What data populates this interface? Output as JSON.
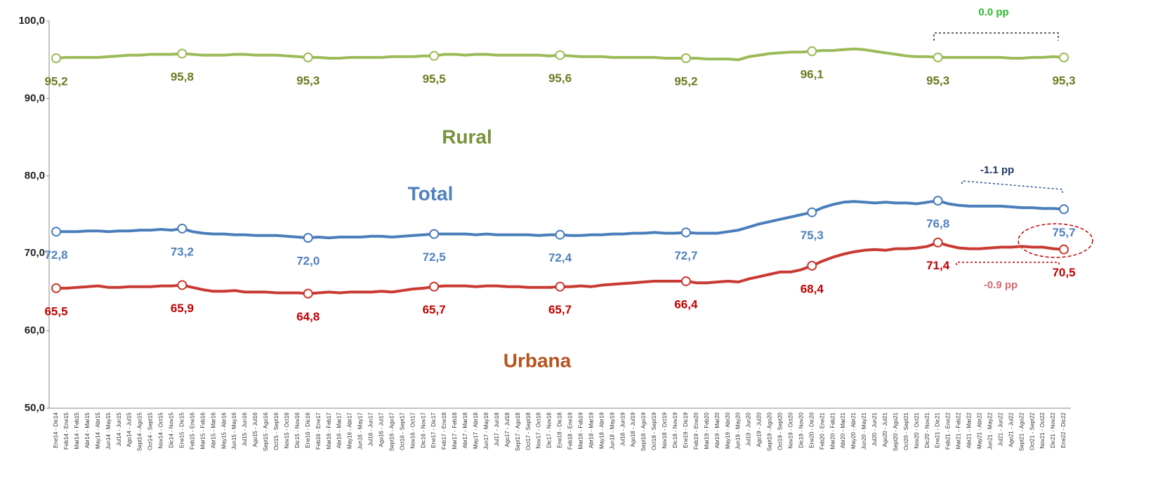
{
  "chart_data": {
    "type": "line",
    "categories": [
      "Ene14 - Dic14",
      "Feb14 - Ene15",
      "Mar14 - Feb15",
      "Abr14 - Mar15",
      "May14 - Abr15",
      "Jun14 - May15",
      "Jul14 - Jun15",
      "Ago14 - Jul15",
      "Sept14 - Ago15",
      "Oct14 - Sept15",
      "Nov14 - Oct15",
      "Dic14 - Nov15",
      "Ene15 - Dic15",
      "Feb15 - Ene16",
      "Mar15 - Feb16",
      "Abr15 - Mar16",
      "May15 - Abr16",
      "Jun15 - May16",
      "Jul15 - Jun16",
      "Ago15 - Jul16",
      "Sept15 - Ago16",
      "Oct15 - Sept16",
      "Nov15 - Oct16",
      "Dic15 - Nov16",
      "Ene16 - Dic16",
      "Feb16 - Ene17",
      "Mar16 - Feb17",
      "Abr16 - Mar17",
      "May16 - Abr17",
      "Jun16 - May17",
      "Jul16 - Jun17",
      "Ago16 - Jul17",
      "Sept16 - Ago17",
      "Oct16 - Sept17",
      "Nov16 - Oct17",
      "Dic16 - Nov17",
      "Ene17 - Dic17",
      "Feb17 - Ene18",
      "Mar17 - Feb18",
      "Abr17 - Mar18",
      "May17 - Abr18",
      "Jun17 - May18",
      "Jul17 - Jun18",
      "Ago17 - Jul18",
      "Sept17 - Ago18",
      "Oct17 - Sept18",
      "Nov17 - Oct18",
      "Dic17 - Nov18",
      "Ene18 - Dic18",
      "Feb18 - Ene19",
      "Mar18 - Feb19",
      "Abr18 - Mar19",
      "May18 - Abr19",
      "Jun18 - May19",
      "Jul18 - Jun19",
      "Ago18 - Jul19",
      "Sept18 - Ago19",
      "Oct18 - Sept19",
      "Nov18 - Oct19",
      "Dic18 - Nov19",
      "Ene19 - Dic19",
      "Feb19 - Ene20",
      "Mar19 - Feb20",
      "Abr19 - Mar20",
      "May19 - Abr20",
      "Jun19 - May20",
      "Jul19 - Jun20",
      "Ago19 - Jul20",
      "Sept19 - Ago20",
      "Oct19 - Sept20",
      "Nov19 - Oct20",
      "Dic19 - Nov20",
      "Ene20 - Dic20",
      "Feb20 - Ene21",
      "Mar20 - Feb21",
      "Abr20 - Mar21",
      "May20 - Abr21",
      "Jun20 - May21",
      "Jul20 - Jun21",
      "Ago20 - Jul21",
      "Sept20 - Ago21",
      "Oct20 - Sept21",
      "Nov20 - Oct21",
      "Dic20 - Nov21",
      "Ene21 - Dic21",
      "Feb21 - Ene22",
      "Mar21 - Feb22",
      "Abr21 - Mar22",
      "May21 - Abr22",
      "Jun21 - May22",
      "Jul21 - Jun22",
      "Ago21 - Jul22",
      "Sept21 - Ago22",
      "Oct21 - Sept22",
      "Nov21 - Oct22",
      "Dic21 - Nov22",
      "Ene22 - Dic22"
    ],
    "series": [
      {
        "name": "Rural",
        "color": "#9bbb59",
        "label_color": "#6b7a1e",
        "name_color": "#77933c",
        "values": [
          95.2,
          95.3,
          95.3,
          95.3,
          95.3,
          95.4,
          95.5,
          95.6,
          95.6,
          95.7,
          95.7,
          95.7,
          95.8,
          95.7,
          95.6,
          95.6,
          95.6,
          95.7,
          95.7,
          95.6,
          95.6,
          95.6,
          95.5,
          95.4,
          95.3,
          95.3,
          95.2,
          95.2,
          95.3,
          95.3,
          95.3,
          95.3,
          95.4,
          95.4,
          95.4,
          95.5,
          95.5,
          95.7,
          95.7,
          95.6,
          95.7,
          95.7,
          95.6,
          95.6,
          95.6,
          95.6,
          95.6,
          95.5,
          95.6,
          95.5,
          95.4,
          95.4,
          95.4,
          95.3,
          95.3,
          95.3,
          95.3,
          95.3,
          95.2,
          95.2,
          95.2,
          95.2,
          95.1,
          95.1,
          95.1,
          95.0,
          95.4,
          95.6,
          95.8,
          95.9,
          96.0,
          96.0,
          96.1,
          96.2,
          96.2,
          96.3,
          96.4,
          96.3,
          96.1,
          95.9,
          95.7,
          95.5,
          95.4,
          95.4,
          95.3,
          95.3,
          95.3,
          95.3,
          95.3,
          95.3,
          95.3,
          95.2,
          95.2,
          95.3,
          95.3,
          95.4,
          95.3
        ],
        "value_labels": [
          "95,2",
          null,
          null,
          null,
          null,
          null,
          null,
          null,
          null,
          null,
          null,
          null,
          "95,8",
          null,
          null,
          null,
          null,
          null,
          null,
          null,
          null,
          null,
          null,
          null,
          "95,3",
          null,
          null,
          null,
          null,
          null,
          null,
          null,
          null,
          null,
          null,
          null,
          "95,5",
          null,
          null,
          null,
          null,
          null,
          null,
          null,
          null,
          null,
          null,
          null,
          "95,6",
          null,
          null,
          null,
          null,
          null,
          null,
          null,
          null,
          null,
          null,
          null,
          "95,2",
          null,
          null,
          null,
          null,
          null,
          null,
          null,
          null,
          null,
          null,
          null,
          "96,1",
          null,
          null,
          null,
          null,
          null,
          null,
          null,
          null,
          null,
          null,
          null,
          "95,3",
          null,
          null,
          null,
          null,
          null,
          null,
          null,
          null,
          null,
          null,
          null,
          "95,3"
        ]
      },
      {
        "name": "Total",
        "color": "#4a7ebb",
        "label_color": "#4f81bd",
        "name_color": "#4f81bd",
        "values": [
          72.8,
          72.8,
          72.8,
          72.9,
          72.9,
          72.8,
          72.9,
          72.9,
          73.0,
          73.0,
          73.1,
          73.0,
          73.2,
          72.8,
          72.6,
          72.5,
          72.5,
          72.4,
          72.4,
          72.3,
          72.3,
          72.3,
          72.2,
          72.1,
          72.0,
          72.1,
          72.0,
          72.1,
          72.1,
          72.1,
          72.2,
          72.2,
          72.1,
          72.2,
          72.3,
          72.4,
          72.5,
          72.5,
          72.5,
          72.5,
          72.4,
          72.5,
          72.4,
          72.4,
          72.4,
          72.4,
          72.3,
          72.4,
          72.4,
          72.3,
          72.3,
          72.4,
          72.4,
          72.5,
          72.5,
          72.6,
          72.6,
          72.7,
          72.6,
          72.6,
          72.7,
          72.6,
          72.6,
          72.6,
          72.8,
          73.0,
          73.4,
          73.8,
          74.1,
          74.4,
          74.7,
          75.0,
          75.3,
          75.9,
          76.3,
          76.6,
          76.7,
          76.6,
          76.5,
          76.6,
          76.5,
          76.5,
          76.4,
          76.6,
          76.8,
          76.4,
          76.2,
          76.1,
          76.1,
          76.1,
          76.1,
          76.0,
          75.9,
          75.9,
          75.8,
          75.8,
          75.7
        ],
        "value_labels": [
          "72,8",
          null,
          null,
          null,
          null,
          null,
          null,
          null,
          null,
          null,
          null,
          null,
          "73,2",
          null,
          null,
          null,
          null,
          null,
          null,
          null,
          null,
          null,
          null,
          null,
          "72,0",
          null,
          null,
          null,
          null,
          null,
          null,
          null,
          null,
          null,
          null,
          null,
          "72,5",
          null,
          null,
          null,
          null,
          null,
          null,
          null,
          null,
          null,
          null,
          null,
          "72,4",
          null,
          null,
          null,
          null,
          null,
          null,
          null,
          null,
          null,
          null,
          null,
          "72,7",
          null,
          null,
          null,
          null,
          null,
          null,
          null,
          null,
          null,
          null,
          null,
          "75,3",
          null,
          null,
          null,
          null,
          null,
          null,
          null,
          null,
          null,
          null,
          null,
          "76,8",
          null,
          null,
          null,
          null,
          null,
          null,
          null,
          null,
          null,
          null,
          null,
          "75,7"
        ]
      },
      {
        "name": "Urbana",
        "color": "#c83a32",
        "label_color": "#c00000",
        "name_color": "#b5541f",
        "values": [
          65.5,
          65.5,
          65.6,
          65.7,
          65.8,
          65.6,
          65.6,
          65.7,
          65.7,
          65.7,
          65.8,
          65.8,
          65.9,
          65.6,
          65.3,
          65.1,
          65.1,
          65.2,
          65.0,
          65.0,
          65.0,
          64.9,
          64.9,
          64.9,
          64.8,
          64.9,
          65.0,
          64.9,
          65.0,
          65.0,
          65.0,
          65.1,
          65.0,
          65.2,
          65.4,
          65.5,
          65.7,
          65.8,
          65.8,
          65.8,
          65.7,
          65.8,
          65.8,
          65.7,
          65.7,
          65.6,
          65.6,
          65.6,
          65.7,
          65.7,
          65.8,
          65.7,
          65.9,
          66.0,
          66.1,
          66.2,
          66.3,
          66.4,
          66.4,
          66.4,
          66.4,
          66.2,
          66.2,
          66.3,
          66.4,
          66.3,
          66.7,
          67.0,
          67.3,
          67.6,
          67.6,
          67.9,
          68.4,
          69.0,
          69.5,
          69.9,
          70.2,
          70.4,
          70.5,
          70.4,
          70.6,
          70.6,
          70.7,
          70.9,
          71.4,
          71.0,
          70.7,
          70.6,
          70.6,
          70.7,
          70.8,
          70.8,
          70.9,
          70.8,
          70.8,
          70.6,
          70.5
        ],
        "value_labels": [
          "65,5",
          null,
          null,
          null,
          null,
          null,
          null,
          null,
          null,
          null,
          null,
          null,
          "65,9",
          null,
          null,
          null,
          null,
          null,
          null,
          null,
          null,
          null,
          null,
          null,
          "64,8",
          null,
          null,
          null,
          null,
          null,
          null,
          null,
          null,
          null,
          null,
          null,
          "65,7",
          null,
          null,
          null,
          null,
          null,
          null,
          null,
          null,
          null,
          null,
          null,
          "65,7",
          null,
          null,
          null,
          null,
          null,
          null,
          null,
          null,
          null,
          null,
          null,
          "66,4",
          null,
          null,
          null,
          null,
          null,
          null,
          null,
          null,
          null,
          null,
          null,
          "68,4",
          null,
          null,
          null,
          null,
          null,
          null,
          null,
          null,
          null,
          null,
          null,
          "71,4",
          null,
          null,
          null,
          null,
          null,
          null,
          null,
          null,
          null,
          null,
          null,
          "70,5"
        ]
      }
    ],
    "annotations": [
      "0.0 pp",
      "-1.1 pp",
      "-0.9 pp"
    ],
    "ylim": [
      50,
      100
    ],
    "yticks": [
      {
        "value": 50,
        "label": "50,0"
      },
      {
        "value": 60,
        "label": "60,0"
      },
      {
        "value": 70,
        "label": "70,0"
      },
      {
        "value": 80,
        "label": "80,0"
      },
      {
        "value": 90,
        "label": "90,0"
      },
      {
        "value": 100,
        "label": "100,0"
      }
    ],
    "grid": false
  }
}
